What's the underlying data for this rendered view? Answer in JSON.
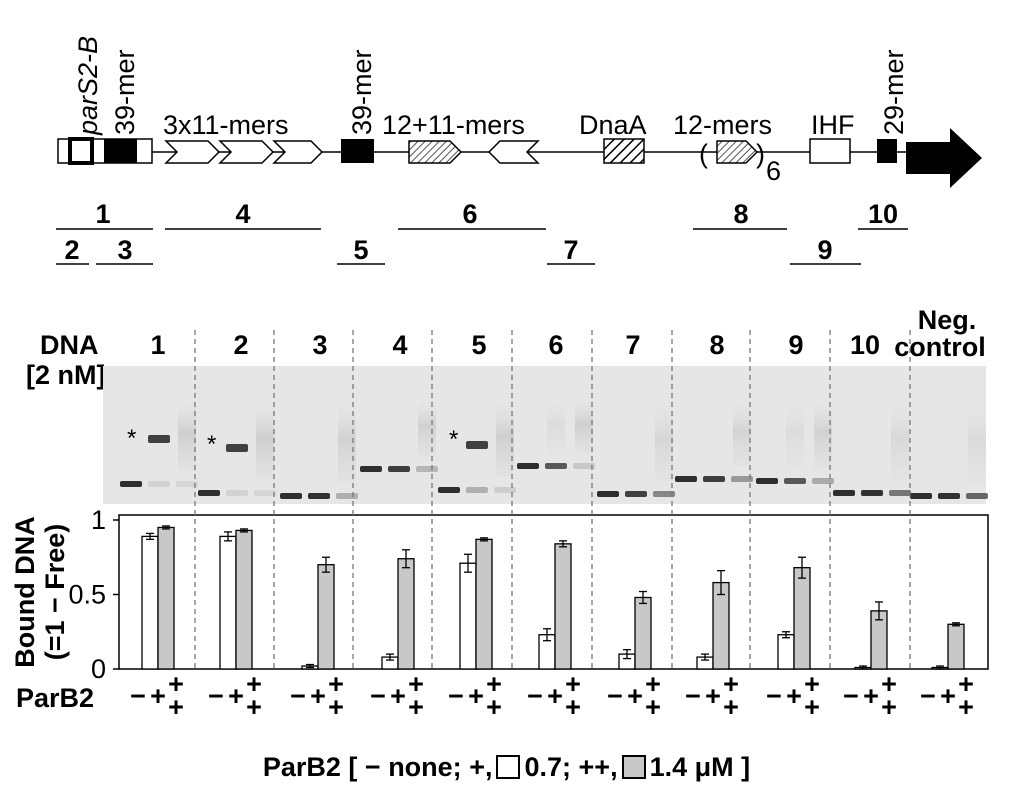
{
  "map": {
    "site_labels": [
      {
        "text": "parS2-B",
        "italic": true
      },
      {
        "text": "39-mer"
      },
      {
        "text": "3x11-mers"
      },
      {
        "text": "39-mer"
      },
      {
        "text": "12+11-mers"
      },
      {
        "text": "DnaA"
      },
      {
        "text": "12-mers"
      },
      {
        "text": "IHF"
      },
      {
        "text": "29-mer"
      }
    ],
    "repeat_open": "(",
    "repeat_close": ")",
    "repeat_count": "6",
    "fragments": [
      "1",
      "2",
      "3",
      "4",
      "5",
      "6",
      "7",
      "8",
      "9",
      "10"
    ]
  },
  "gel": {
    "dna_label_line1": "DNA",
    "dna_label_line2": "[2 nM]",
    "lanes": [
      "1",
      "2",
      "3",
      "4",
      "5",
      "6",
      "7",
      "8",
      "9",
      "10"
    ],
    "neg_control_line1": "Neg.",
    "neg_control_line2": "control",
    "star": "*"
  },
  "chart_data": {
    "type": "bar",
    "categories": [
      "1",
      "2",
      "3",
      "4",
      "5",
      "6",
      "7",
      "8",
      "9",
      "10",
      "Neg. control"
    ],
    "ylabel_line1": "Bound DNA",
    "ylabel_line2": "(=1 − Free)",
    "ylim": [
      0,
      1
    ],
    "yticks": [
      "0",
      "0.5",
      "1"
    ],
    "series": [
      {
        "name": "+",
        "color": "#ffffff",
        "values": [
          0.89,
          0.89,
          0.02,
          0.08,
          0.71,
          0.23,
          0.1,
          0.08,
          0.23,
          0.01,
          0.01
        ],
        "errors": [
          0.02,
          0.03,
          0.01,
          0.02,
          0.06,
          0.04,
          0.03,
          0.02,
          0.02,
          0.01,
          0.01
        ]
      },
      {
        "name": "++",
        "color": "#c8c8c8",
        "values": [
          0.95,
          0.93,
          0.7,
          0.74,
          0.87,
          0.84,
          0.48,
          0.58,
          0.68,
          0.39,
          0.3
        ],
        "errors": [
          0.01,
          0.01,
          0.05,
          0.06,
          0.01,
          0.02,
          0.04,
          0.08,
          0.07,
          0.06,
          0.01
        ]
      }
    ],
    "xlabel": "ParB2",
    "lane_signs": [
      "−",
      "+",
      "+"
    ]
  },
  "caption": {
    "prefix": "ParB2",
    "open": "[",
    "none_text": "− none;",
    "plus_text": "+,",
    "plus_value": "0.7;",
    "pp_text": "++,",
    "pp_value": "1.4 μM",
    "close": "]"
  }
}
